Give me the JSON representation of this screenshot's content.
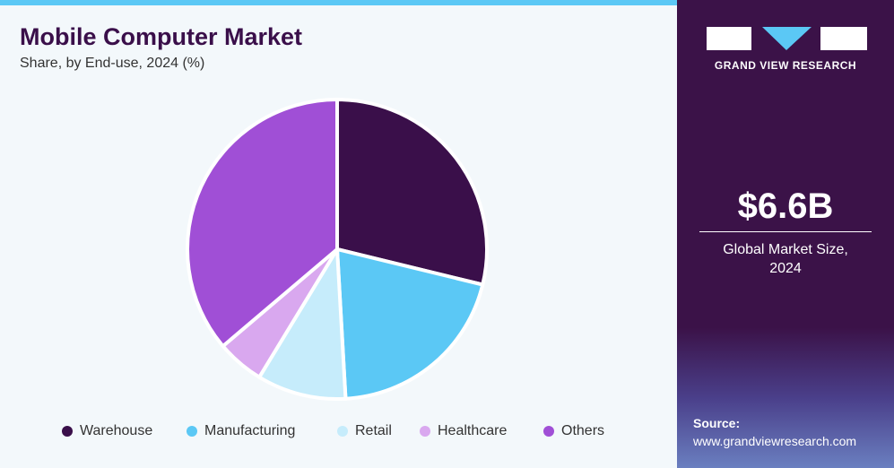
{
  "chart_data": {
    "type": "pie",
    "title": "Mobile Computer Market",
    "subtitle": "Share, by End-use, 2024 (%)",
    "categories": [
      "Warehouse",
      "Manufacturing",
      "Retail",
      "Healthcare",
      "Others"
    ],
    "values": [
      28.8,
      20.3,
      9.6,
      5.1,
      36.2
    ],
    "colors": [
      "#3a0f4a",
      "#5bc8f5",
      "#c6ecfb",
      "#d9a8ef",
      "#a04fd6"
    ]
  },
  "brand": "GRAND VIEW RESEARCH",
  "market_size": "$6.6B",
  "market_size_label": "Global Market Size, 2024",
  "source_label": "Source:",
  "source_url": "www.grandviewresearch.com"
}
